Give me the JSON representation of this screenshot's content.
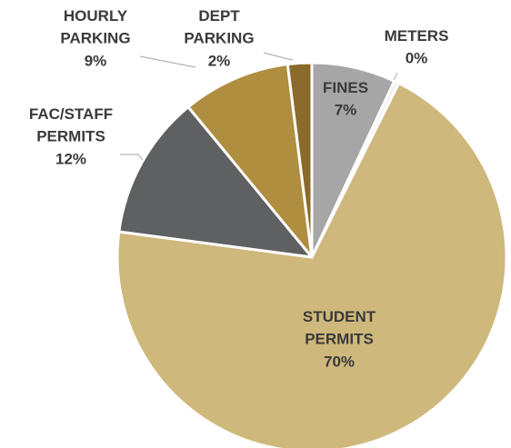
{
  "chart_data": {
    "type": "pie",
    "slices": [
      {
        "id": "fines",
        "lines": [
          "FINES",
          "7%"
        ],
        "value": 7,
        "color": "#a6a6a6",
        "text_color": "#3a3a3a"
      },
      {
        "id": "meters",
        "lines": [
          "METERS",
          "0%"
        ],
        "value": 0.4,
        "color": "#eeeeee",
        "text_color": "#3a3a3a"
      },
      {
        "id": "student-permits",
        "lines": [
          "STUDENT",
          "PERMITS",
          "70%"
        ],
        "value": 70,
        "color": "#cfb87c",
        "text_color": "#3a3a3a"
      },
      {
        "id": "fac-staff-permits",
        "lines": [
          "FAC/STAFF",
          "PERMITS",
          "12%"
        ],
        "value": 12,
        "color": "#5f6062",
        "text_color": "#3a3a3a"
      },
      {
        "id": "hourly-parking",
        "lines": [
          "HOURLY",
          "PARKING",
          "9%"
        ],
        "value": 9,
        "color": "#b08e40",
        "text_color": "#3a3a3a"
      },
      {
        "id": "dept-parking",
        "lines": [
          "DEPT",
          "PARKING",
          "2%"
        ],
        "value": 2,
        "color": "#8b6b2b",
        "text_color": "#3a3a3a"
      }
    ],
    "start_angle_deg": 0,
    "direction": "clockwise"
  }
}
